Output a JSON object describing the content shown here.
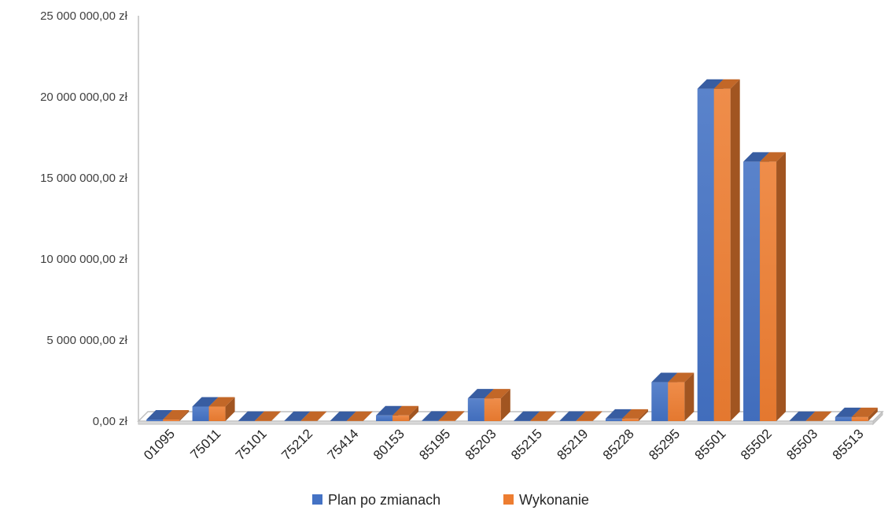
{
  "chart_data": {
    "type": "bar",
    "style": "3d-clustered-column",
    "categories": [
      "01095",
      "75011",
      "75101",
      "75212",
      "75414",
      "80153",
      "85195",
      "85203",
      "85215",
      "85219",
      "85228",
      "85295",
      "85501",
      "85502",
      "85503",
      "85513"
    ],
    "series": [
      {
        "name": "Plan po zmianach",
        "color": "#4472C4",
        "values": [
          100000,
          900000,
          20000,
          10000,
          15000,
          350000,
          30000,
          1400000,
          20000,
          25000,
          150000,
          2400000,
          20500000,
          16000000,
          10000,
          250000
        ]
      },
      {
        "name": "Wykonanie",
        "color": "#ED7D31",
        "values": [
          100000,
          900000,
          20000,
          10000,
          15000,
          350000,
          30000,
          1400000,
          20000,
          25000,
          150000,
          2400000,
          20500000,
          16000000,
          10000,
          250000
        ]
      }
    ],
    "y_ticks": [
      "0,00 zł",
      "5 000 000,00 zł",
      "10 000 000,00 zł",
      "15 000 000,00 zł",
      "20 000 000,00 zł",
      "25 000 000,00 zł"
    ],
    "ylim": [
      0,
      25000000
    ],
    "title": "",
    "xlabel": "",
    "ylabel": "",
    "grid": false,
    "legend_position": "bottom"
  }
}
